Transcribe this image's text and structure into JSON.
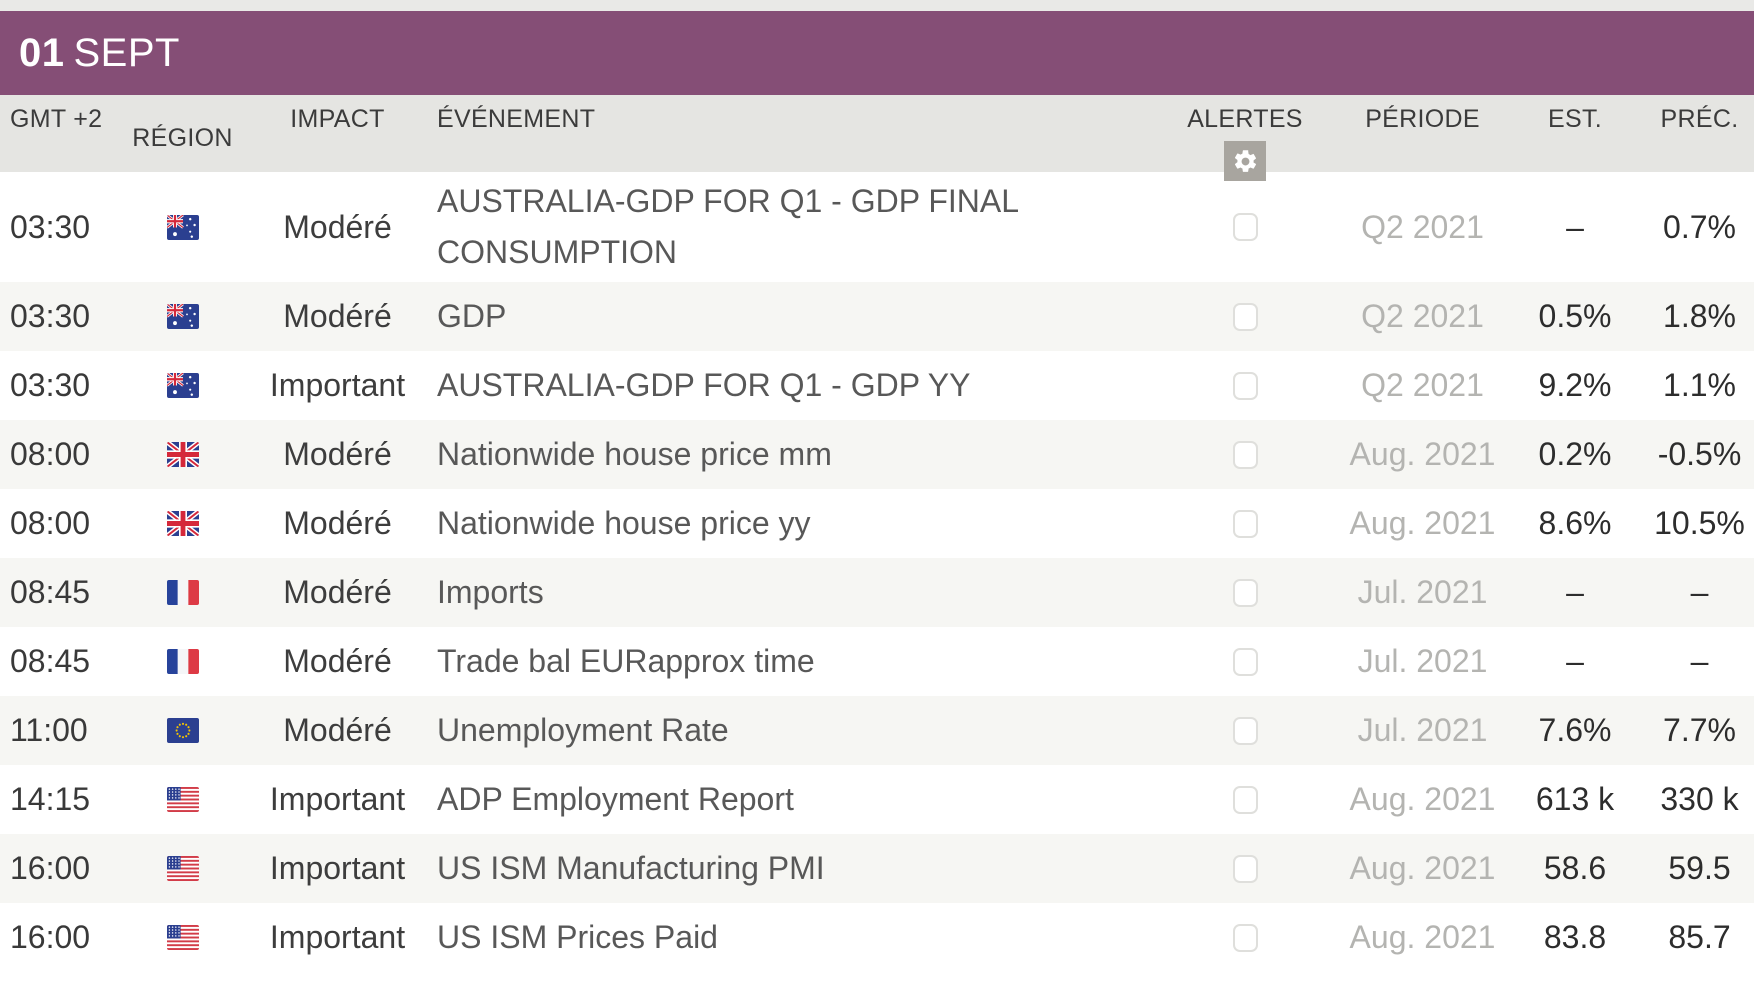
{
  "banner": {
    "day": "01",
    "month": "SEPT"
  },
  "columns": {
    "time": "GMT +2",
    "region": "RÉGION",
    "impact": "IMPACT",
    "event": "ÉVÉNEMENT",
    "alerts": "ALERTES",
    "period": "PÉRIODE",
    "est": "EST.",
    "prev": "PRÉC."
  },
  "icons": {
    "alerts_settings": "gear-icon"
  },
  "colors": {
    "banner_purple": "#854e76",
    "header_strip": "#e5e5e2",
    "top_strip": "#e9e9e7",
    "row_alt": "#f6f6f3",
    "gear_bg": "#a8a59f",
    "period_text": "#b4b4b1"
  },
  "rows": [
    {
      "time": "03:30",
      "region": "australia",
      "impact": "Modéré",
      "event": "AUSTRALIA-GDP FOR Q1 - GDP FINAL CONSUMPTION",
      "alert_checked": false,
      "period": "Q2 2021",
      "est": "–",
      "prev": "0.7%"
    },
    {
      "time": "03:30",
      "region": "australia",
      "impact": "Modéré",
      "event": "GDP",
      "alert_checked": false,
      "period": "Q2 2021",
      "est": "0.5%",
      "prev": "1.8%"
    },
    {
      "time": "03:30",
      "region": "australia",
      "impact": "Important",
      "event": "AUSTRALIA-GDP FOR Q1 - GDP YY",
      "alert_checked": false,
      "period": "Q2 2021",
      "est": "9.2%",
      "prev": "1.1%"
    },
    {
      "time": "08:00",
      "region": "uk",
      "impact": "Modéré",
      "event": "Nationwide house price mm",
      "alert_checked": false,
      "period": "Aug. 2021",
      "est": "0.2%",
      "prev": "-0.5%"
    },
    {
      "time": "08:00",
      "region": "uk",
      "impact": "Modéré",
      "event": "Nationwide house price yy",
      "alert_checked": false,
      "period": "Aug. 2021",
      "est": "8.6%",
      "prev": "10.5%"
    },
    {
      "time": "08:45",
      "region": "france",
      "impact": "Modéré",
      "event": "Imports",
      "alert_checked": false,
      "period": "Jul. 2021",
      "est": "–",
      "prev": "–"
    },
    {
      "time": "08:45",
      "region": "france",
      "impact": "Modéré",
      "event": "Trade bal EURapprox time",
      "alert_checked": false,
      "period": "Jul. 2021",
      "est": "–",
      "prev": "–"
    },
    {
      "time": "11:00",
      "region": "eu",
      "impact": "Modéré",
      "event": "Unemployment Rate",
      "alert_checked": false,
      "period": "Jul. 2021",
      "est": "7.6%",
      "prev": "7.7%"
    },
    {
      "time": "14:15",
      "region": "us",
      "impact": "Important",
      "event": "ADP Employment Report",
      "alert_checked": false,
      "period": "Aug. 2021",
      "est": "613 k",
      "prev": "330 k"
    },
    {
      "time": "16:00",
      "region": "us",
      "impact": "Important",
      "event": "US ISM Manufacturing PMI",
      "alert_checked": false,
      "period": "Aug. 2021",
      "est": "58.6",
      "prev": "59.5"
    },
    {
      "time": "16:00",
      "region": "us",
      "impact": "Important",
      "event": "US ISM Prices Paid",
      "alert_checked": false,
      "period": "Aug. 2021",
      "est": "83.8",
      "prev": "85.7"
    }
  ]
}
